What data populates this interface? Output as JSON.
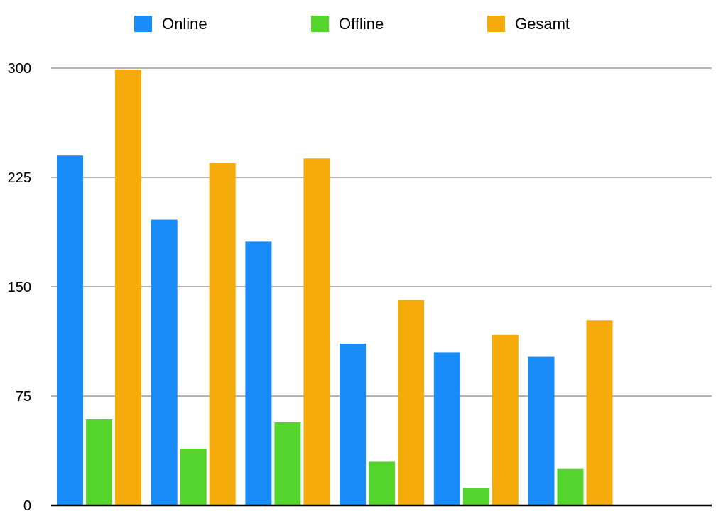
{
  "chart_data": {
    "type": "bar",
    "title": "",
    "xlabel": "",
    "ylabel": "",
    "ylim": [
      0,
      300
    ],
    "yticks": [
      0,
      75,
      150,
      225,
      300
    ],
    "grid": true,
    "legend_position": "top",
    "categories": [
      "",
      "",
      "",
      "",
      "",
      ""
    ],
    "series": [
      {
        "name": "Online",
        "color": "#1a8cfa",
        "values": [
          240,
          196,
          181,
          111,
          105,
          102
        ]
      },
      {
        "name": "Offline",
        "color": "#56d42e",
        "values": [
          59,
          39,
          57,
          30,
          12,
          25
        ]
      },
      {
        "name": "Gesamt",
        "color": "#f5ab0c",
        "values": [
          299,
          235,
          238,
          141,
          117,
          127
        ]
      }
    ]
  }
}
